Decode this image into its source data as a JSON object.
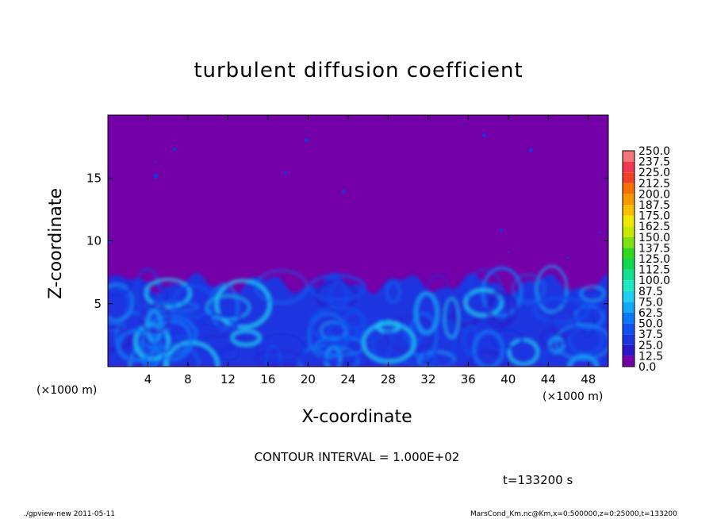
{
  "chart_data": {
    "type": "heatmap",
    "title": "turbulent diffusion coefficient",
    "xlabel": "X-coordinate",
    "ylabel": "Z-coordinate",
    "x_unit": "(×1000 m)",
    "y_unit": "(×1000 m)",
    "xlim": [
      0,
      50
    ],
    "ylim": [
      0,
      20
    ],
    "xticks": [
      "4",
      "8",
      "12",
      "16",
      "20",
      "24",
      "28",
      "32",
      "36",
      "40",
      "44",
      "48"
    ],
    "yticks": [
      "5",
      "10",
      "15"
    ],
    "colorbar": {
      "levels": [
        "0.0",
        "12.5",
        "25.0",
        "37.5",
        "50.0",
        "62.5",
        "75.0",
        "87.5",
        "100.0",
        "112.5",
        "125.0",
        "137.5",
        "150.0",
        "162.5",
        "175.0",
        "187.5",
        "200.0",
        "212.5",
        "225.0",
        "237.5",
        "250.0"
      ],
      "colors": [
        "#7400a8",
        "#2a18c8",
        "#1a34e0",
        "#1050f0",
        "#0a78f8",
        "#14a8f8",
        "#20d0f0",
        "#20e8c0",
        "#10e090",
        "#10d850",
        "#30d820",
        "#80e010",
        "#c8e800",
        "#f0e800",
        "#f8c000",
        "#f89800",
        "#f87000",
        "#f04028",
        "#f03850",
        "#f07878"
      ]
    },
    "background_color": "#7400a8",
    "turbulent_layer_top_approx": 7,
    "contour_interval": "CONTOUR INTERVAL = 1.000E+02",
    "time_label": "t=133200 s"
  },
  "footer": {
    "left": "./gpview-new   2011-05-11",
    "right": "MarsCond_Km.nc@Km,x=0:500000,z=0:25000,t=133200"
  }
}
